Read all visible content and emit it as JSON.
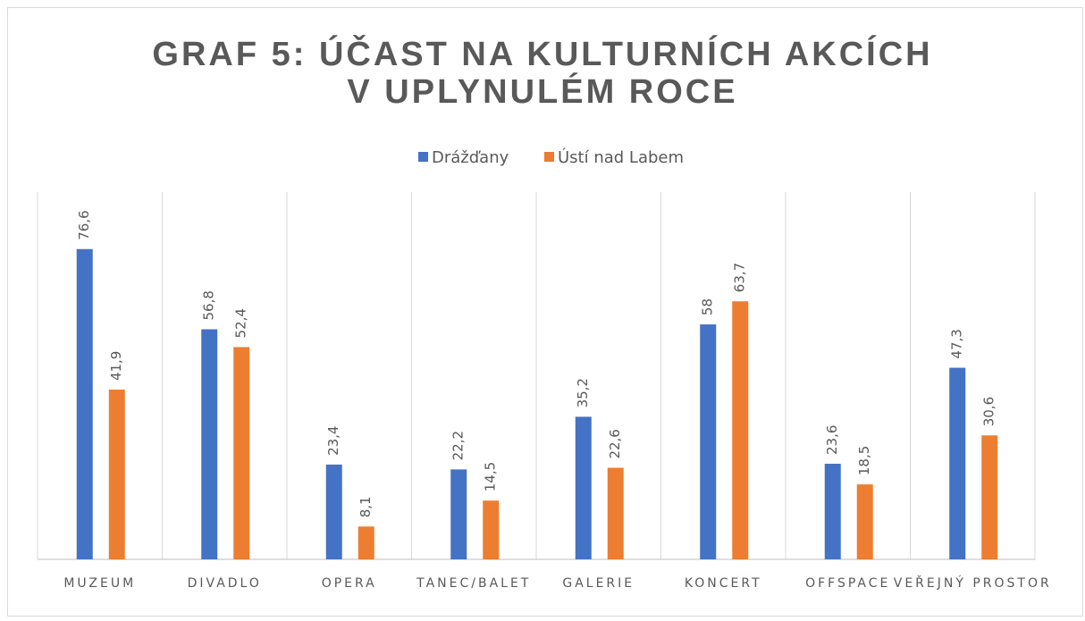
{
  "chart_data": {
    "type": "bar",
    "title": "GRAF 5: ÚČAST NA KULTURNÍCH AKCÍCH V UPLYNULÉM ROCE",
    "categories": [
      "MUZEUM",
      "DIVADLO",
      "OPERA",
      "TANEC/BALET",
      "GALERIE",
      "KONCERT",
      "OFFSPACE",
      "VEŘEJNÝ PROSTOR"
    ],
    "series": [
      {
        "name": "Drážďany",
        "color": "#4472c4",
        "values": [
          76.6,
          56.8,
          23.4,
          22.2,
          35.2,
          58,
          23.6,
          47.3
        ],
        "value_labels": [
          "76,6",
          "56,8",
          "23,4",
          "22,2",
          "35,2",
          "58",
          "23,6",
          "47,3"
        ]
      },
      {
        "name": "Ústí nad Labem",
        "color": "#ed7d31",
        "values": [
          41.9,
          52.4,
          8.1,
          14.5,
          22.6,
          63.7,
          18.5,
          30.6
        ],
        "value_labels": [
          "41,9",
          "52,4",
          "8,1",
          "14,5",
          "22,6",
          "63,7",
          "18,5",
          "30,6"
        ]
      }
    ],
    "ylim": [
      0,
      90
    ],
    "legend": "top"
  }
}
